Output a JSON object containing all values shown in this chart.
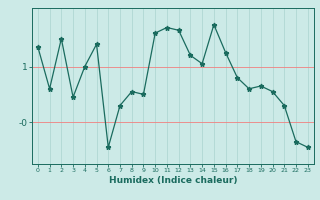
{
  "x": [
    0,
    1,
    2,
    3,
    4,
    5,
    6,
    7,
    8,
    9,
    10,
    11,
    12,
    13,
    14,
    15,
    16,
    17,
    18,
    19,
    20,
    21,
    22,
    23
  ],
  "y": [
    1.35,
    0.6,
    1.5,
    0.45,
    1.0,
    1.4,
    -0.45,
    0.3,
    0.55,
    0.5,
    1.6,
    1.7,
    1.65,
    1.2,
    1.05,
    1.75,
    1.25,
    0.8,
    0.6,
    0.65,
    0.55,
    0.3,
    -0.35,
    -0.45
  ],
  "line_color": "#1a6b5e",
  "marker": "*",
  "marker_size": 3.5,
  "bg_color": "#cceae7",
  "hgrid_color": "#f08080",
  "vgrid_color": "#aad4d0",
  "axis_label": "Humidex (Indice chaleur)",
  "ytick_labels_pos": [
    0.0,
    1.0
  ],
  "ytick_labels_str": [
    "-0",
    "1"
  ],
  "xlim": [
    -0.5,
    23.5
  ],
  "ylim": [
    -0.75,
    2.05
  ]
}
